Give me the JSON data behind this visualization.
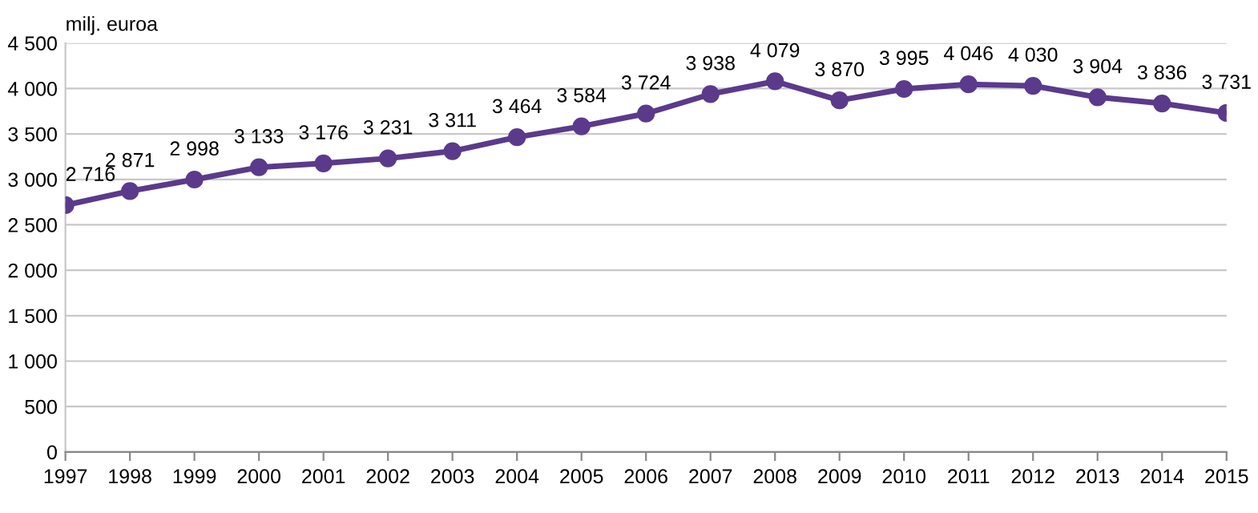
{
  "chart_data": {
    "type": "line",
    "ylabel": "milj. euroa",
    "x": [
      1997,
      1998,
      1999,
      2000,
      2001,
      2002,
      2003,
      2004,
      2005,
      2006,
      2007,
      2008,
      2009,
      2010,
      2011,
      2012,
      2013,
      2014,
      2015
    ],
    "series": [
      {
        "color": "#5b3a8c",
        "values": [
          2716,
          2871,
          2998,
          3133,
          3176,
          3231,
          3311,
          3464,
          3584,
          3724,
          3938,
          4079,
          3870,
          3995,
          4046,
          4030,
          3904,
          3836,
          3731
        ],
        "value_labels": [
          "2 716",
          "2 871",
          "2 998",
          "3 133",
          "3 176",
          "3 231",
          "3 311",
          "3 464",
          "3 584",
          "3 724",
          "3 938",
          "4 079",
          "3 870",
          "3 995",
          "4 046",
          "4 030",
          "3 904",
          "3 836",
          "3 731"
        ]
      }
    ],
    "xlim": [
      1997,
      2015
    ],
    "xticks": [
      1997,
      1998,
      1999,
      2000,
      2001,
      2002,
      2003,
      2004,
      2005,
      2006,
      2007,
      2008,
      2009,
      2010,
      2011,
      2012,
      2013,
      2014,
      2015
    ],
    "ylim": [
      0,
      4500
    ],
    "yticks": [
      0,
      500,
      {
        "value": 1000,
        "label": "1 000"
      },
      {
        "value": 1500,
        "label": "1 500"
      },
      {
        "value": 2000,
        "label": "2 000"
      },
      {
        "value": 2500,
        "label": "2 500"
      },
      {
        "value": 3000,
        "label": "3 000"
      },
      {
        "value": 3500,
        "label": "3 500"
      },
      {
        "value": 4000,
        "label": "4 000"
      },
      {
        "value": 4500,
        "label": "4 500"
      }
    ],
    "grid": "y",
    "marker": "circle",
    "line_style": "solid"
  }
}
